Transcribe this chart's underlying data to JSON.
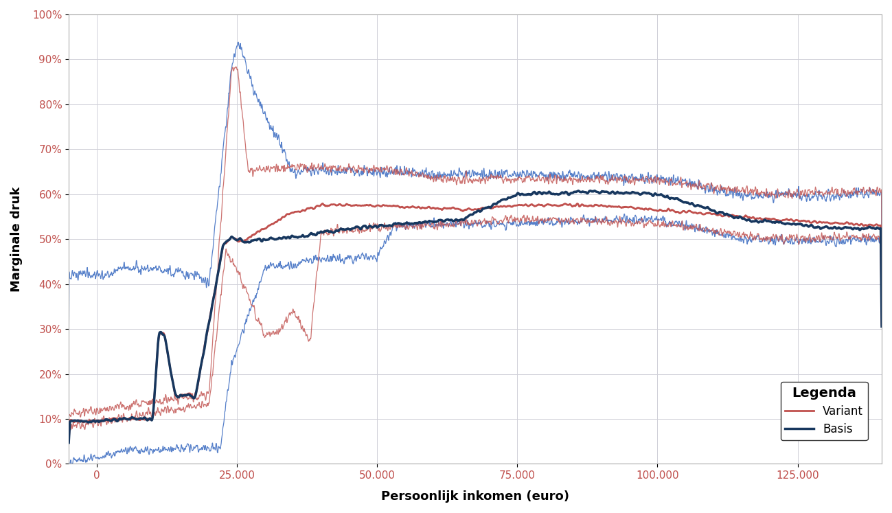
{
  "title": "",
  "xlabel": "Persoonlijk inkomen (euro)",
  "ylabel": "Marginale druk",
  "legend_title": "Legenda",
  "legend_entries": [
    "Variant",
    "Basis"
  ],
  "variant_color": "#c0504d",
  "basis_color": "#17375e",
  "band_color_basis": "#4472c4",
  "band_color_variant": "#c0504d",
  "tick_color": "#c0504d",
  "xlim": [
    -5000,
    140000
  ],
  "ylim": [
    0.0,
    1.0
  ],
  "yticks": [
    0.0,
    0.1,
    0.2,
    0.3,
    0.4,
    0.5,
    0.6,
    0.7,
    0.8,
    0.9,
    1.0
  ],
  "xticks": [
    0,
    25000,
    50000,
    75000,
    100000,
    125000
  ],
  "xtick_labels": [
    "0",
    "25.000",
    "50.000",
    "75.000",
    "100.000",
    "125.000"
  ],
  "ytick_labels": [
    "0%",
    "10%",
    "20%",
    "30%",
    "40%",
    "50%",
    "60%",
    "70%",
    "80%",
    "90%",
    "100%"
  ],
  "background_color": "#ffffff",
  "grid_color": "#d0d0d8",
  "seed": 42
}
